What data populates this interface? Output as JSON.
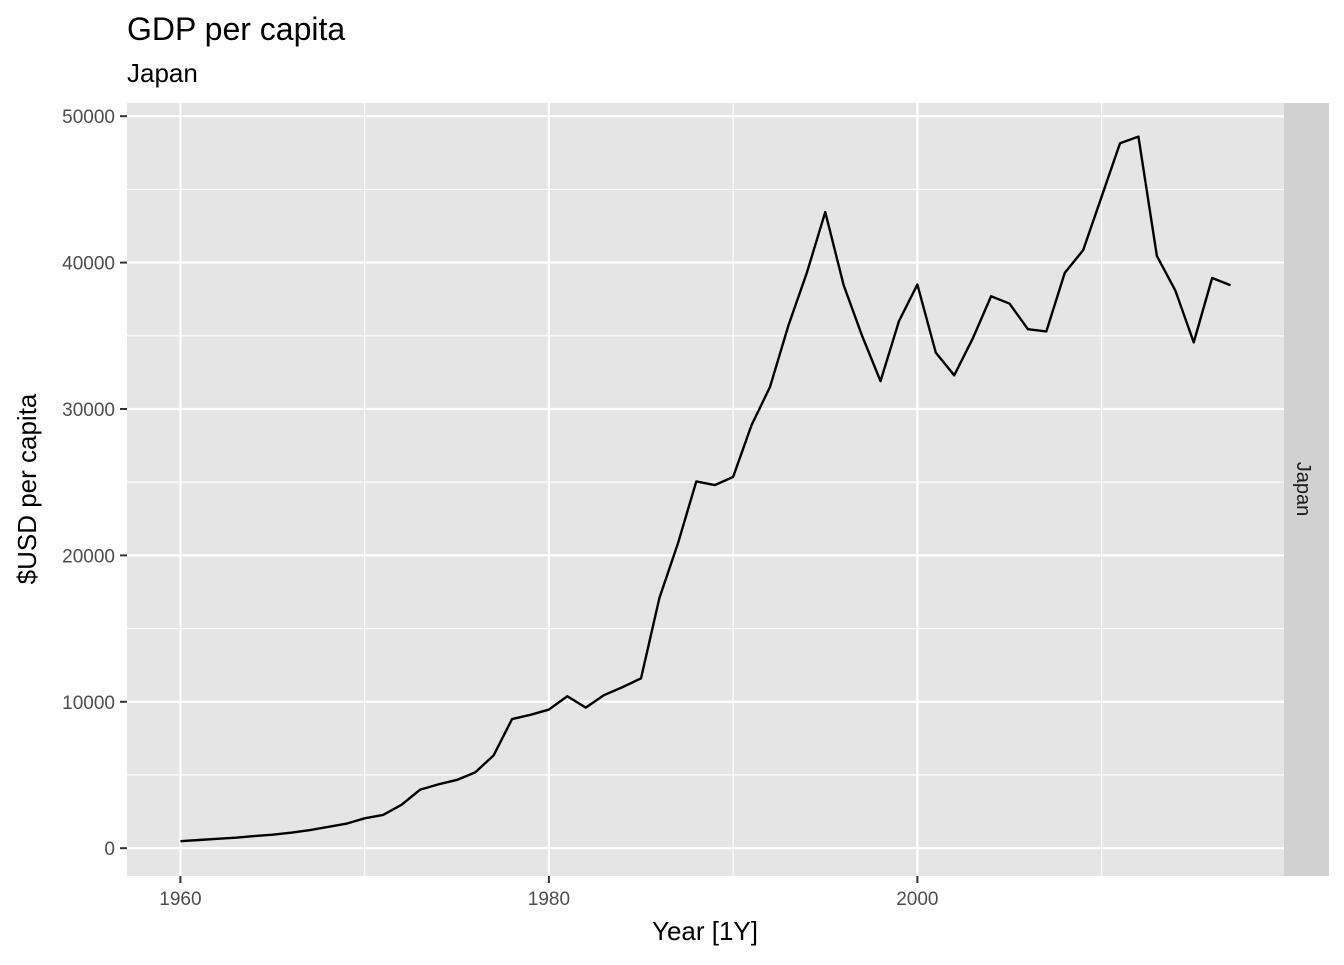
{
  "chart_data": {
    "type": "line",
    "title": "GDP per capita",
    "subtitle": "Japan",
    "xlabel": "Year [1Y]",
    "ylabel": "$USD per capita",
    "facet_label": "Japan",
    "xlim": [
      1957.1,
      2019.9
    ],
    "ylim": [
      -1900,
      50900
    ],
    "x_ticks": [
      1960,
      1980,
      2000
    ],
    "x_tick_labels": [
      "1960",
      "1980",
      "2000"
    ],
    "y_ticks": [
      0,
      10000,
      20000,
      30000,
      40000,
      50000
    ],
    "y_tick_labels": [
      "0",
      "10000",
      "20000",
      "30000",
      "40000",
      "50000"
    ],
    "grid": true,
    "panel_background": "#e5e5e5",
    "strip_background": "#d1d1d1",
    "line_color": "#000000",
    "x": [
      1960,
      1961,
      1962,
      1963,
      1964,
      1965,
      1966,
      1967,
      1968,
      1969,
      1970,
      1971,
      1972,
      1973,
      1974,
      1975,
      1976,
      1977,
      1978,
      1979,
      1980,
      1981,
      1982,
      1983,
      1984,
      1985,
      1986,
      1987,
      1988,
      1989,
      1990,
      1991,
      1992,
      1993,
      1994,
      1995,
      1996,
      1997,
      1998,
      1999,
      2000,
      2001,
      2002,
      2003,
      2004,
      2005,
      2006,
      2007,
      2008,
      2009,
      2010,
      2011,
      2012,
      2013,
      2014,
      2015,
      2016,
      2017
    ],
    "values": [
      480,
      560,
      640,
      720,
      830,
      920,
      1060,
      1230,
      1450,
      1670,
      2040,
      2270,
      2960,
      3990,
      4360,
      4660,
      5180,
      6340,
      8820,
      9110,
      9470,
      10380,
      9600,
      10460,
      11000,
      11600,
      17100,
      20800,
      25050,
      24800,
      25360,
      28900,
      31500,
      35700,
      39300,
      43450,
      38450,
      35000,
      31900,
      36000,
      38500,
      33850,
      32300,
      34800,
      37700,
      37200,
      35450,
      35300,
      39300,
      40850,
      44500,
      48150,
      48600,
      40450,
      38100,
      34550,
      38950,
      38450
    ]
  }
}
